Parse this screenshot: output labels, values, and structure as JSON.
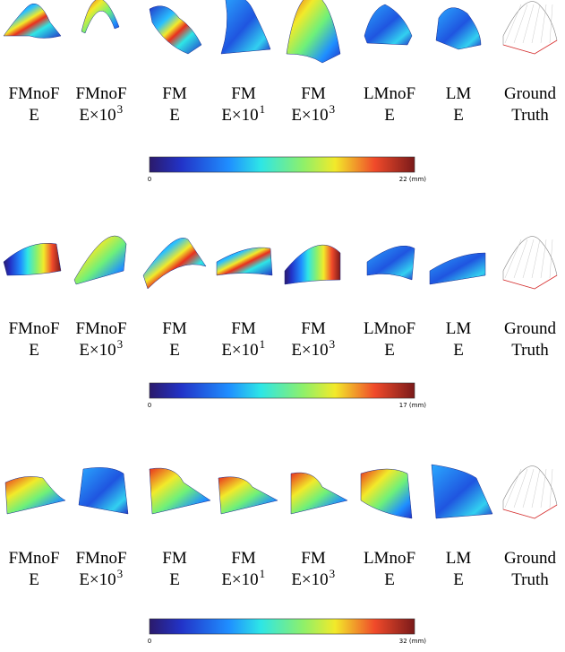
{
  "figure": {
    "rows": [
      {
        "labels": [
          {
            "line1": "FMnoF",
            "line2": "E"
          },
          {
            "line1": "FMnoF",
            "line2": "E×10",
            "sup": "3"
          },
          {
            "line1": "FM",
            "line2": "E"
          },
          {
            "line1": "FM",
            "line2": "E×10",
            "sup": "1"
          },
          {
            "line1": "FM",
            "line2": "E×10",
            "sup": "3"
          },
          {
            "line1": "LMnoF",
            "line2": "E"
          },
          {
            "line1": "LM",
            "line2": "E"
          },
          {
            "line1": "Ground",
            "line2": "Truth"
          }
        ],
        "colorbar": {
          "min_label": "0",
          "max_label": "22 (mm)"
        }
      },
      {
        "labels": [
          {
            "line1": "FMnoF",
            "line2": "E"
          },
          {
            "line1": "FMnoF",
            "line2": "E×10",
            "sup": "3"
          },
          {
            "line1": "FM",
            "line2": "E"
          },
          {
            "line1": "FM",
            "line2": "E×10",
            "sup": "1"
          },
          {
            "line1": "FM",
            "line2": "E×10",
            "sup": "3"
          },
          {
            "line1": "LMnoF",
            "line2": "E"
          },
          {
            "line1": "LM",
            "line2": "E"
          },
          {
            "line1": "Ground",
            "line2": "Truth"
          }
        ],
        "colorbar": {
          "min_label": "0",
          "max_label": "17 (mm)"
        }
      },
      {
        "labels": [
          {
            "line1": "FMnoF",
            "line2": "E"
          },
          {
            "line1": "FMnoF",
            "line2": "E×10",
            "sup": "3"
          },
          {
            "line1": "FM",
            "line2": "E"
          },
          {
            "line1": "FM",
            "line2": "E×10",
            "sup": "1"
          },
          {
            "line1": "FM",
            "line2": "E×10",
            "sup": "3"
          },
          {
            "line1": "LMnoF",
            "line2": "E"
          },
          {
            "line1": "LM",
            "line2": "E"
          },
          {
            "line1": "Ground",
            "line2": "Truth"
          }
        ],
        "colorbar": {
          "min_label": "0",
          "max_label": "32 (mm)"
        }
      }
    ]
  }
}
